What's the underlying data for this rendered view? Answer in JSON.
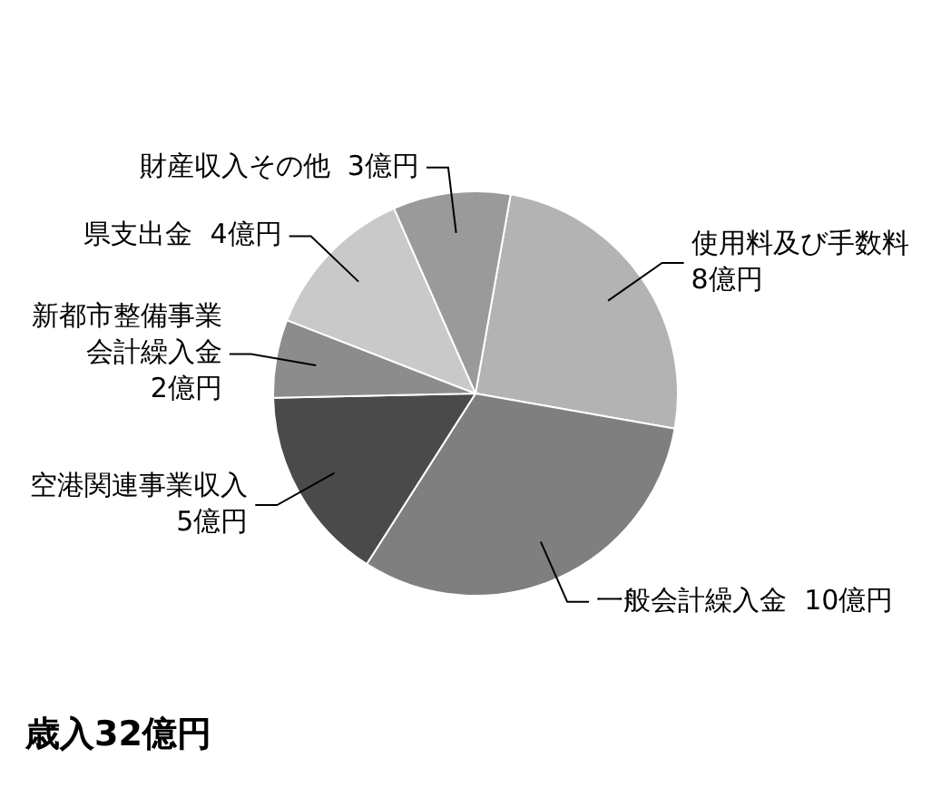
{
  "chart_data": {
    "type": "pie",
    "title": "歳入32億円",
    "categories": [
      "使用料及び手数料",
      "一般会計繰入金",
      "空港関連事業収入",
      "新都市整備事業会計繰入金",
      "県支出金",
      "財産収入その他"
    ],
    "values": [
      8,
      10,
      5,
      2,
      4,
      3
    ],
    "value_labels": [
      "8億円",
      "10億円",
      "5億円",
      "2億円",
      "4億円",
      "3億円"
    ],
    "colors": [
      "#b3b3b3",
      "#7f7f7f",
      "#4a4a4a",
      "#8c8c8c",
      "#c9c9c9",
      "#9a9a9a"
    ],
    "legend": false
  }
}
